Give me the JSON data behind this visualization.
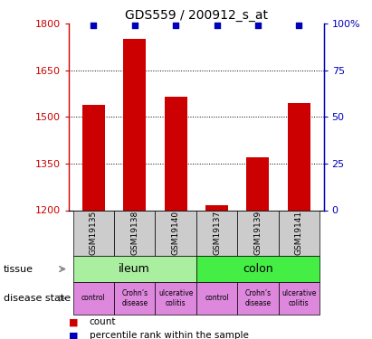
{
  "title": "GDS559 / 200912_s_at",
  "samples": [
    "GSM19135",
    "GSM19138",
    "GSM19140",
    "GSM19137",
    "GSM19139",
    "GSM19141"
  ],
  "counts": [
    1540,
    1750,
    1565,
    1215,
    1370,
    1545
  ],
  "percentiles": [
    99,
    99,
    99,
    99,
    99,
    99
  ],
  "ylim_left": [
    1200,
    1800
  ],
  "yticks_left": [
    1200,
    1350,
    1500,
    1650,
    1800
  ],
  "ylim_right": [
    0,
    100
  ],
  "yticks_right": [
    0,
    25,
    50,
    75,
    100
  ],
  "bar_color": "#cc0000",
  "percentile_color": "#0000bb",
  "tissue_ileum_color": "#aaeea0",
  "tissue_colon_color": "#44ee44",
  "disease_color": "#dd88dd",
  "sample_bg_color": "#cccccc",
  "tissues": [
    {
      "label": "ileum",
      "span": [
        0,
        3
      ],
      "color": "#aaeea0"
    },
    {
      "label": "colon",
      "span": [
        3,
        6
      ],
      "color": "#44ee44"
    }
  ],
  "disease_states": [
    {
      "label": "control"
    },
    {
      "label": "Crohn’s\ndisease"
    },
    {
      "label": "ulcerative\ncolitis"
    },
    {
      "label": "control"
    },
    {
      "label": "Crohn’s\ndisease"
    },
    {
      "label": "ulcerative\ncolitis"
    }
  ]
}
